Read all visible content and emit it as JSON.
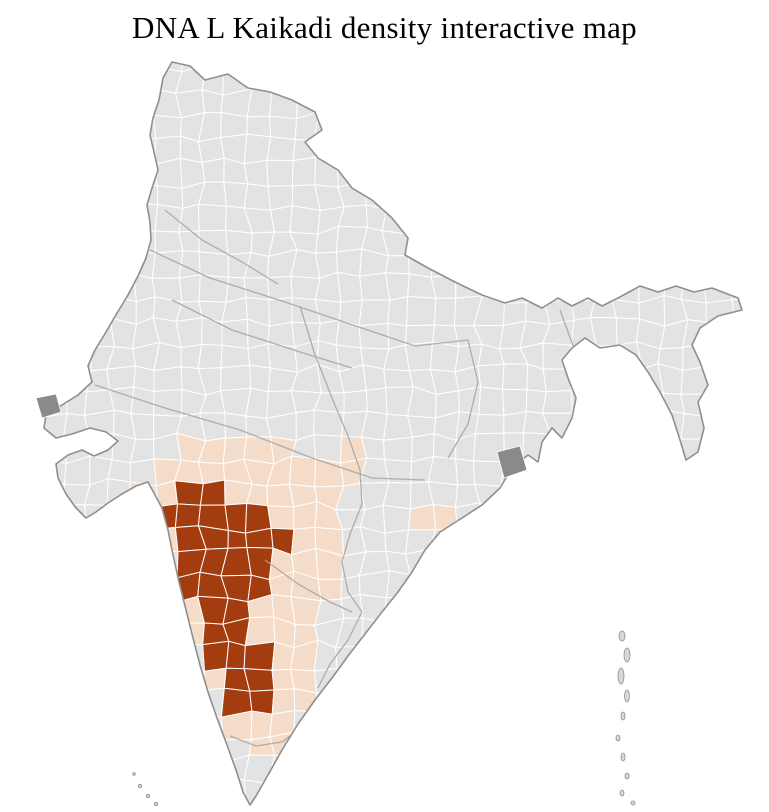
{
  "page": {
    "title": "DNA L Kaikadi density interactive map"
  },
  "map": {
    "colors": {
      "background": "#ffffff",
      "land": "#e3e3e3",
      "district_border": "#ffffff",
      "state_border": "#a6a6a6",
      "outline": "#8f8f8f",
      "density_high": "#a33c0f",
      "density_low": "#f4dcc8",
      "no_data": "#8a8a8a",
      "island": "#d8d8d8"
    }
  }
}
